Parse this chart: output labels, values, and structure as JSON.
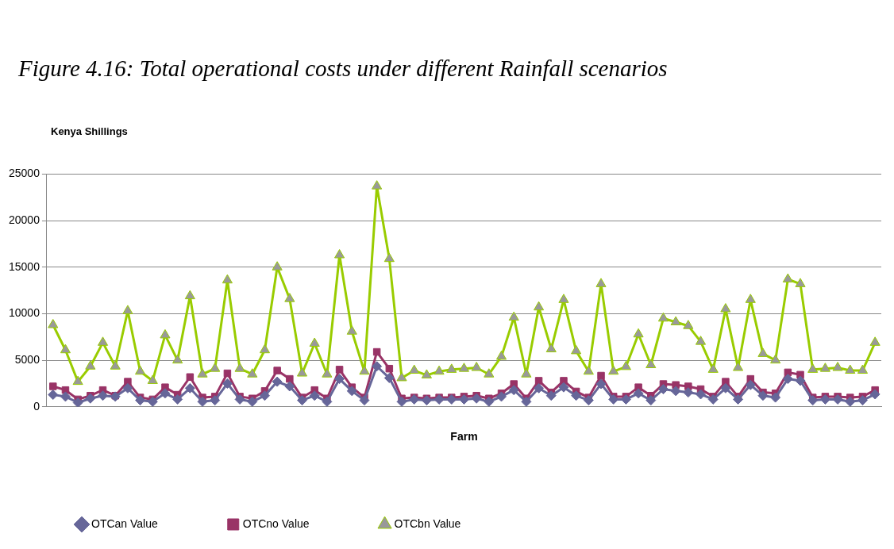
{
  "chart_data": {
    "type": "line",
    "title": "Figure 4.16: Total operational costs under different Rainfall scenarios",
    "ylabel": "Kenya Shillings",
    "xlabel": "Farm",
    "categories": [
      null,
      null,
      null,
      null,
      null,
      null,
      null,
      null,
      null,
      null,
      null,
      null,
      null,
      null,
      null,
      null,
      null,
      null,
      null,
      null,
      null,
      null,
      null,
      null,
      null,
      null,
      null,
      null,
      null,
      null,
      null,
      null,
      null,
      null,
      null,
      null,
      null,
      null,
      null,
      null,
      null,
      null,
      null,
      null,
      null,
      null,
      null,
      null,
      null,
      null,
      null,
      null,
      null,
      null,
      null,
      null,
      null,
      null,
      null,
      null,
      null,
      null,
      null,
      null,
      null,
      null,
      null
    ],
    "series": [
      {
        "name": "OTCan Value",
        "color": "#666699",
        "marker": "diamond",
        "values": [
          1300,
          1100,
          450,
          900,
          1200,
          1100,
          2000,
          700,
          550,
          1450,
          800,
          2000,
          550,
          700,
          2500,
          800,
          550,
          1200,
          2700,
          2200,
          700,
          1200,
          550,
          3000,
          1700,
          700,
          4350,
          3100,
          550,
          800,
          700,
          800,
          800,
          800,
          900,
          550,
          1100,
          1800,
          550,
          2000,
          1200,
          2100,
          1200,
          700,
          2450,
          800,
          800,
          1450,
          700,
          1900,
          1700,
          1550,
          1350,
          800,
          2000,
          800,
          2350,
          1200,
          1000,
          3000,
          2800,
          700,
          800,
          800,
          550,
          700,
          1350
        ]
      },
      {
        "name": "OTCno Value",
        "color": "#993366",
        "marker": "square",
        "values": [
          2200,
          1800,
          800,
          1200,
          1800,
          1200,
          2700,
          1000,
          800,
          2100,
          1300,
          3200,
          1000,
          1100,
          3600,
          1100,
          900,
          1700,
          3900,
          3000,
          1000,
          1800,
          900,
          4000,
          2100,
          1000,
          5900,
          4100,
          900,
          1000,
          900,
          1000,
          1000,
          1100,
          1200,
          900,
          1450,
          2450,
          900,
          2800,
          1550,
          2800,
          1650,
          1000,
          3350,
          1100,
          1100,
          2100,
          1200,
          2450,
          2350,
          2200,
          1900,
          1100,
          2700,
          1100,
          3000,
          1550,
          1450,
          3700,
          3450,
          1000,
          1100,
          1100,
          1000,
          1100,
          1800
        ]
      },
      {
        "name": "OTCbn Value",
        "color": "#99cc00",
        "marker": "triangle",
        "values": [
          8800,
          6100,
          2700,
          4350,
          6900,
          4350,
          10300,
          3800,
          2800,
          7700,
          5000,
          11900,
          3500,
          4100,
          13600,
          4100,
          3500,
          6100,
          15000,
          11600,
          3600,
          6800,
          3500,
          16300,
          8100,
          3800,
          23700,
          15900,
          3100,
          3900,
          3400,
          3800,
          4000,
          4100,
          4200,
          3500,
          5400,
          9600,
          3500,
          10700,
          6200,
          11500,
          6000,
          3800,
          13200,
          3800,
          4300,
          7800,
          4500,
          9500,
          9100,
          8700,
          7000,
          4000,
          10500,
          4200,
          11500,
          5700,
          5000,
          13700,
          13200,
          4000,
          4100,
          4200,
          3900,
          3900,
          6900
        ]
      }
    ],
    "ylim": [
      0,
      25000
    ],
    "yticks": [
      0,
      5000,
      10000,
      15000,
      20000,
      25000
    ],
    "grid": "y",
    "legend": "bottom"
  }
}
